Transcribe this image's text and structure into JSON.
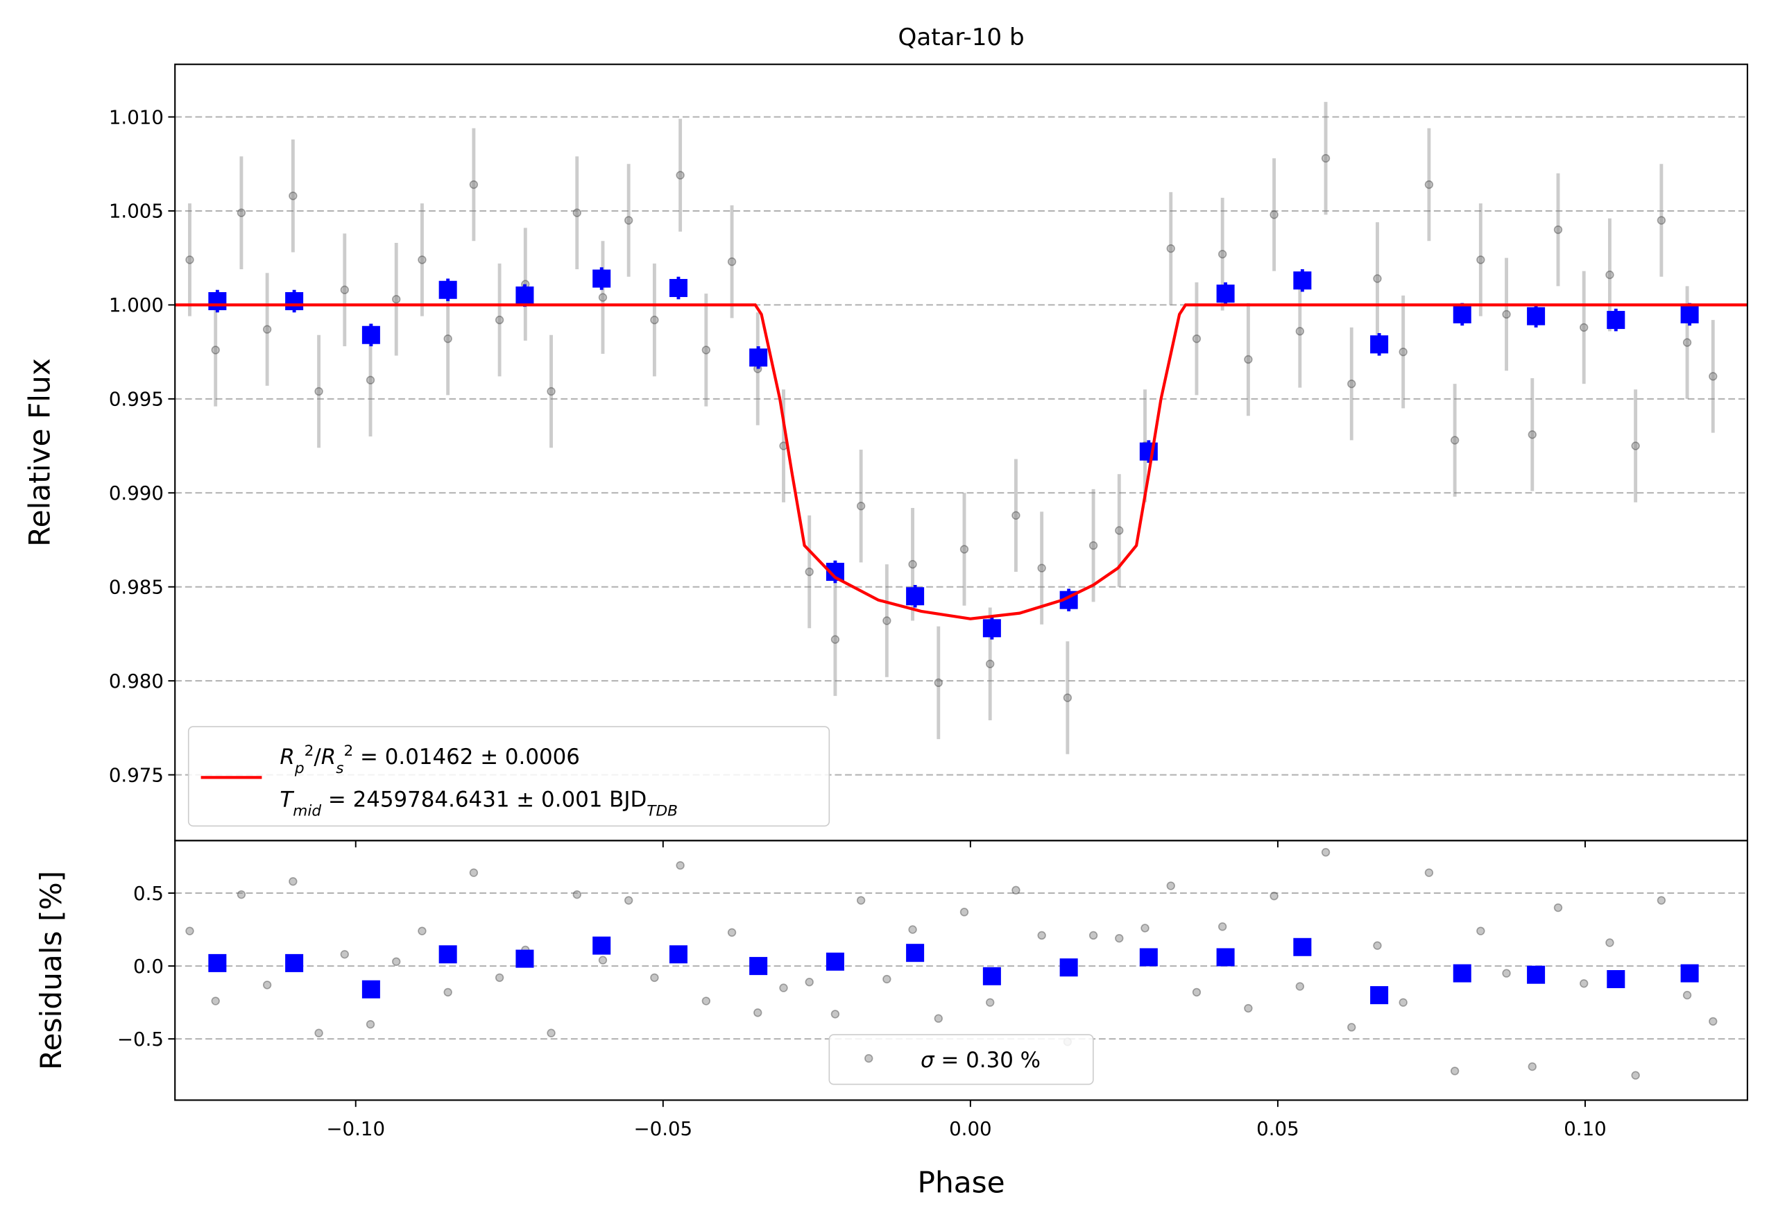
{
  "chart_data": [
    {
      "type": "scatter",
      "title": "Qatar-10 b",
      "ylabel": "Relative Flux",
      "xlim": [
        -0.1294,
        0.1264
      ],
      "ylim": [
        0.9715,
        1.0128
      ],
      "grid": true,
      "legend": "lower left",
      "yticks": [
        0.975,
        {
          "value": 0.98,
          "label": "0.980"
        },
        0.985,
        {
          "value": 0.99,
          "label": "0.990"
        },
        0.995,
        {
          "value": 1.0,
          "label": "1.000"
        },
        1.005,
        {
          "value": 1.01,
          "label": "1.010"
        }
      ],
      "series": [
        {
          "type": "scatter",
          "color": "#808080",
          "x": [
            -0.127,
            -0.1228,
            -0.1186,
            -0.1144,
            -0.1102,
            -0.106,
            -0.1018,
            -0.0976,
            -0.0934,
            -0.0892,
            -0.085,
            -0.0808,
            -0.0766,
            -0.0724,
            -0.0682,
            -0.064,
            -0.0598,
            -0.0556,
            -0.0514,
            -0.0472,
            -0.043,
            -0.0388,
            -0.0346,
            -0.0304,
            -0.0262,
            -0.022,
            -0.0178,
            -0.0136,
            -0.0094,
            -0.0052,
            -0.001,
            0.0032,
            0.0074,
            0.0116,
            0.0158,
            0.02,
            0.0242,
            0.0284,
            0.0326,
            0.0368,
            0.041,
            0.0452,
            0.0494,
            0.0536,
            0.0578,
            0.062,
            0.0662,
            0.0704,
            0.0746,
            0.0788,
            0.083,
            0.0872,
            0.0914,
            0.0956,
            0.0998,
            0.104,
            0.1082,
            0.1124,
            0.1166,
            0.1208
          ],
          "values": [
            1.0024,
            0.9976,
            1.0049,
            0.9987,
            1.0058,
            0.9954,
            1.0008,
            0.996,
            1.0003,
            1.0024,
            0.9982,
            1.0064,
            0.9992,
            1.0011,
            0.9954,
            1.0049,
            1.0004,
            1.0045,
            0.9992,
            1.0069,
            0.9976,
            1.0023,
            0.9966,
            0.9925,
            0.9858,
            0.9822,
            0.9893,
            0.9832,
            0.9862,
            0.9799,
            0.987,
            0.9809,
            0.9888,
            0.986,
            0.9791,
            0.9872,
            0.988,
            0.9925,
            1.003,
            0.9982,
            1.0027,
            0.9971,
            1.0048,
            0.9986,
            1.0078,
            0.9958,
            1.0014,
            0.9975,
            1.0064,
            0.9928,
            1.0024,
            0.9995,
            0.9931,
            1.004,
            0.9988,
            1.0016,
            0.9925,
            1.0045,
            0.998,
            0.9962
          ],
          "errors": [
            0.003,
            0.003,
            0.003,
            0.003,
            0.003,
            0.003,
            0.003,
            0.003,
            0.003,
            0.003,
            0.003,
            0.003,
            0.003,
            0.003,
            0.003,
            0.003,
            0.003,
            0.003,
            0.003,
            0.003,
            0.003,
            0.003,
            0.003,
            0.003,
            0.003,
            0.003,
            0.003,
            0.003,
            0.003,
            0.003,
            0.003,
            0.003,
            0.003,
            0.003,
            0.003,
            0.003,
            0.003,
            0.003,
            0.003,
            0.003,
            0.003,
            0.003,
            0.003,
            0.003,
            0.003,
            0.003,
            0.003,
            0.003,
            0.003,
            0.003,
            0.003,
            0.003,
            0.003,
            0.003,
            0.003,
            0.003,
            0.003,
            0.003,
            0.003,
            0.003
          ]
        },
        {
          "type": "scatter",
          "color": "#0000ff",
          "x": [
            -0.1225,
            -0.11,
            -0.0975,
            -0.085,
            -0.0725,
            -0.06,
            -0.0475,
            -0.0345,
            -0.022,
            -0.009,
            0.0035,
            0.016,
            0.029,
            0.0415,
            0.054,
            0.0665,
            0.08,
            0.092,
            0.105,
            0.117
          ],
          "values": [
            1.0002,
            1.0002,
            0.9984,
            1.0008,
            1.0005,
            1.0014,
            1.0009,
            0.9972,
            0.9858,
            0.9845,
            0.9828,
            0.9843,
            0.9922,
            1.0006,
            1.0013,
            0.9979,
            0.9995,
            0.9994,
            0.9992,
            0.9995
          ],
          "errors": [
            0.0006,
            0.0006,
            0.0006,
            0.0006,
            0.0006,
            0.0006,
            0.0006,
            0.0006,
            0.0006,
            0.0006,
            0.0006,
            0.0006,
            0.0006,
            0.0006,
            0.0006,
            0.0006,
            0.0006,
            0.0006,
            0.0006,
            0.0006
          ]
        },
        {
          "type": "line",
          "color": "#ff0000",
          "x": [
            -0.1294,
            -0.035,
            -0.034,
            -0.031,
            -0.029,
            -0.027,
            -0.022,
            -0.015,
            -0.008,
            0,
            0.008,
            0.015,
            0.02,
            0.024,
            0.027,
            0.029,
            0.031,
            0.034,
            0.035,
            0.1264
          ],
          "values": [
            1.0,
            1.0,
            0.9995,
            0.995,
            0.991,
            0.9872,
            0.9855,
            0.9843,
            0.9837,
            0.9833,
            0.9836,
            0.9843,
            0.9851,
            0.986,
            0.9872,
            0.991,
            0.995,
            0.9995,
            1.0,
            1.0
          ],
          "legend_label": [
            [
              {
                "t": "R",
                "italic": true
              },
              {
                "t": "p",
                "italic": true,
                "pos": "sub"
              },
              {
                "t": "2",
                "pos": "super"
              },
              {
                "t": "/"
              },
              {
                "t": "R",
                "italic": true
              },
              {
                "t": "s",
                "italic": true,
                "pos": "sub"
              },
              {
                "t": "2",
                "pos": "super"
              },
              {
                "t": " = 0.01462 ± 0.0006"
              }
            ],
            [
              {
                "t": "T",
                "italic": true
              },
              {
                "t": "mid",
                "italic": true,
                "pos": "sub"
              },
              {
                "t": " = 2459784.6431 ± 0.001 BJD"
              },
              {
                "t": "TDB",
                "italic": true,
                "pos": "sub"
              }
            ]
          ]
        }
      ]
    },
    {
      "type": "scatter",
      "xlabel": "Phase",
      "ylabel": "Residuals [%]",
      "xlim": [
        -0.1294,
        0.1264
      ],
      "ylim": [
        -0.92,
        0.86
      ],
      "grid": true,
      "legend": "lower center",
      "xticks": [
        {
          "value": -0.1,
          "label": "−0.10"
        },
        {
          "value": -0.05,
          "label": "−0.05"
        },
        {
          "value": 0,
          "label": "0.00"
        },
        {
          "value": 0.05,
          "label": "0.05"
        },
        {
          "value": 0.1,
          "label": "0.10"
        }
      ],
      "yticks": [
        {
          "value": -0.5,
          "label": "−0.5"
        },
        {
          "value": 0,
          "label": "0.0"
        },
        0.5
      ],
      "series": [
        {
          "type": "scatter",
          "color": "#808080",
          "x": [
            -0.127,
            -0.1228,
            -0.1186,
            -0.1144,
            -0.1102,
            -0.106,
            -0.1018,
            -0.0976,
            -0.0934,
            -0.0892,
            -0.085,
            -0.0808,
            -0.0766,
            -0.0724,
            -0.0682,
            -0.064,
            -0.0598,
            -0.0556,
            -0.0514,
            -0.0472,
            -0.043,
            -0.0388,
            -0.0346,
            -0.0304,
            -0.0262,
            -0.022,
            -0.0178,
            -0.0136,
            -0.0094,
            -0.0052,
            -0.001,
            0.0032,
            0.0074,
            0.0116,
            0.0158,
            0.02,
            0.0242,
            0.0284,
            0.0326,
            0.0368,
            0.041,
            0.0452,
            0.0494,
            0.0536,
            0.0578,
            0.062,
            0.0662,
            0.0704,
            0.0746,
            0.0788,
            0.083,
            0.0872,
            0.0914,
            0.0956,
            0.0998,
            0.104,
            0.1082,
            0.1124,
            0.1166,
            0.1208
          ],
          "values": [
            0.24,
            -0.24,
            0.49,
            -0.13,
            0.58,
            -0.46,
            0.08,
            -0.4,
            0.03,
            0.24,
            -0.18,
            0.64,
            -0.08,
            0.11,
            -0.46,
            0.49,
            0.04,
            0.45,
            -0.08,
            0.69,
            -0.24,
            0.23,
            -0.32,
            -0.15,
            -0.11,
            -0.33,
            0.45,
            -0.09,
            0.25,
            -0.36,
            0.37,
            -0.25,
            0.52,
            0.21,
            -0.52,
            0.21,
            0.19,
            0.26,
            0.55,
            -0.18,
            0.27,
            -0.29,
            0.48,
            -0.14,
            0.78,
            -0.42,
            0.14,
            -0.25,
            0.64,
            -0.72,
            0.24,
            -0.05,
            -0.69,
            0.4,
            -0.12,
            0.16,
            -0.75,
            0.45,
            -0.2,
            -0.38
          ],
          "legend_label": [
            [
              {
                "t": "σ",
                "italic": true
              },
              {
                "t": " = 0.30 %"
              }
            ]
          ]
        },
        {
          "type": "scatter",
          "color": "#0000ff",
          "x": [
            -0.1225,
            -0.11,
            -0.0975,
            -0.085,
            -0.0725,
            -0.06,
            -0.0475,
            -0.0345,
            -0.022,
            -0.009,
            0.0035,
            0.016,
            0.029,
            0.0415,
            0.054,
            0.0665,
            0.08,
            0.092,
            0.105,
            0.117
          ],
          "values": [
            0.02,
            0.02,
            -0.16,
            0.08,
            0.05,
            0.14,
            0.08,
            0.0,
            0.03,
            0.09,
            -0.07,
            -0.01,
            0.06,
            0.06,
            0.13,
            -0.2,
            -0.05,
            -0.06,
            -0.09,
            -0.05
          ]
        }
      ]
    }
  ]
}
